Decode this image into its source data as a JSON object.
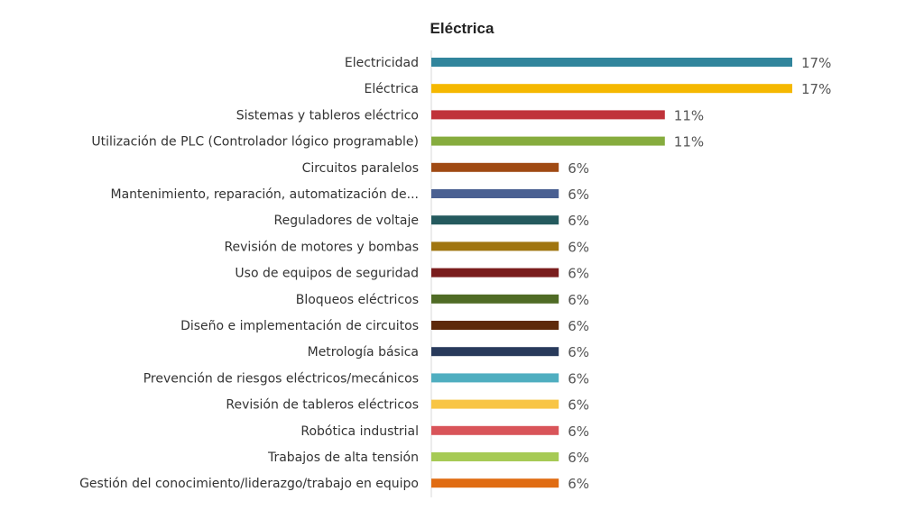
{
  "chart_data": {
    "type": "bar",
    "orientation": "horizontal",
    "title": "Eléctrica",
    "xlabel": "",
    "ylabel": "",
    "value_unit": "%",
    "xlim": [
      0,
      17
    ],
    "grid": false,
    "legend": false,
    "categories": [
      "Electricidad",
      "Eléctrica",
      "Sistemas y tableros eléctrico",
      "Utilización de PLC (Controlador lógico programable)",
      "Circuitos paralelos",
      "Mantenimiento, reparación, automatización de...",
      "Reguladores de voltaje",
      "Revisión de motores y bombas",
      "Uso de equipos de seguridad",
      "Bloqueos eléctricos",
      "Diseño e implementación de circuitos",
      "Metrología básica",
      "Prevención de riesgos eléctricos/mecánicos",
      "Revisión de tableros eléctricos",
      "Robótica industrial",
      "Trabajos de alta tensión",
      "Gestión del conocimiento/liderazgo/trabajo en equipo"
    ],
    "values": [
      17,
      17,
      11,
      11,
      6,
      6,
      6,
      6,
      6,
      6,
      6,
      6,
      6,
      6,
      6,
      6,
      6
    ],
    "value_labels": [
      "17%",
      "17%",
      "11%",
      "11%",
      "6%",
      "6%",
      "6%",
      "6%",
      "6%",
      "6%",
      "6%",
      "6%",
      "6%",
      "6%",
      "6%",
      "6%",
      "6%"
    ],
    "colors": [
      "#31859c",
      "#f5b800",
      "#c0333a",
      "#86ac3e",
      "#a04a13",
      "#4a6092",
      "#245a5e",
      "#a07510",
      "#7a1d1d",
      "#4f6b25",
      "#5e2a0b",
      "#283a5b",
      "#4faec0",
      "#f8c545",
      "#d95459",
      "#a6ca55",
      "#e06c12"
    ]
  }
}
